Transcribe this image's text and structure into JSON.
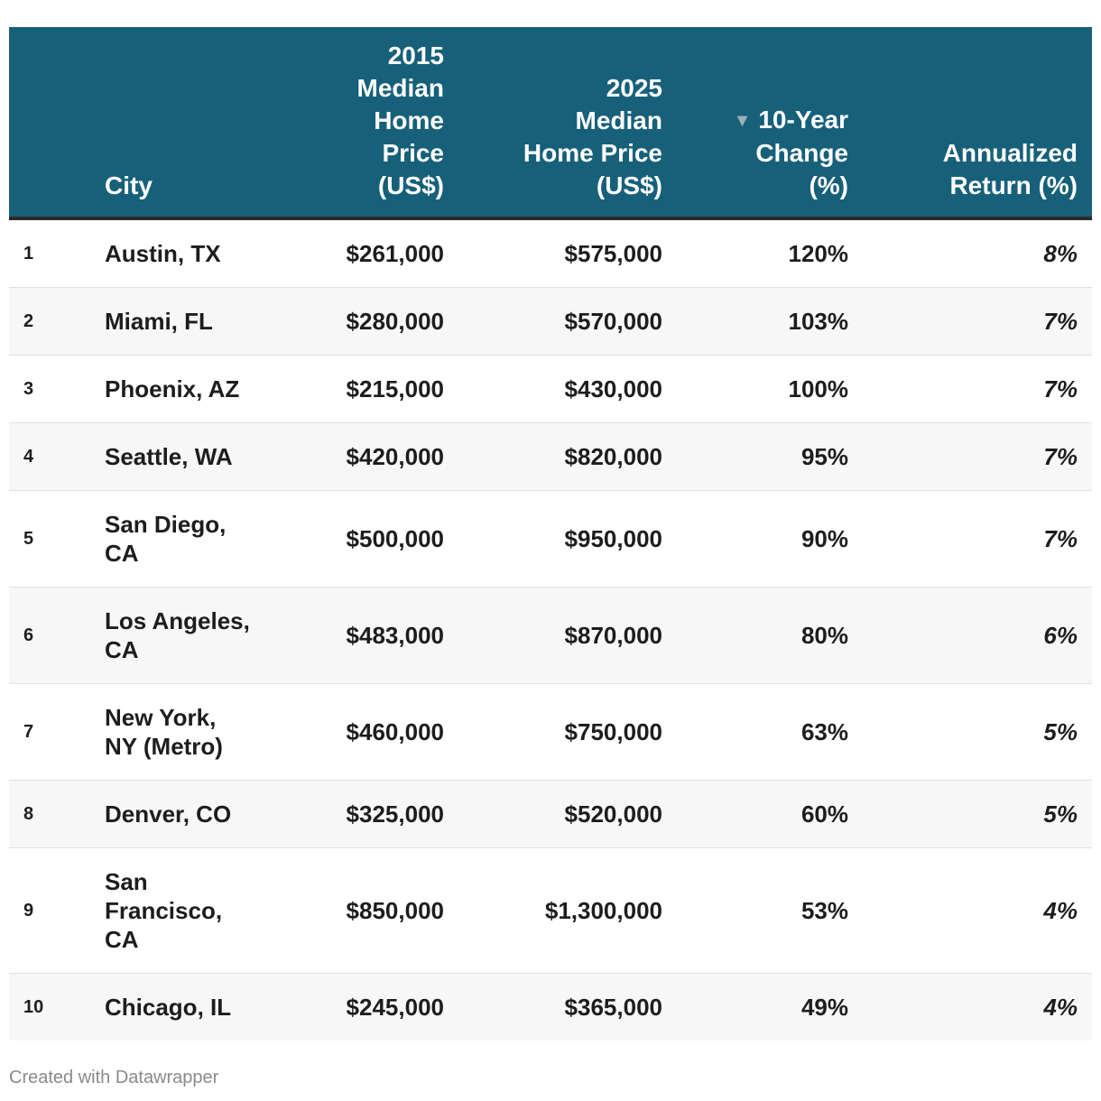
{
  "chart_data": {
    "type": "table",
    "columns": [
      {
        "key": "rank",
        "label_lines": [
          ""
        ]
      },
      {
        "key": "city",
        "label_lines": [
          "City"
        ]
      },
      {
        "key": "price_2015",
        "label_lines": [
          "2015",
          "Median",
          "Home",
          "Price",
          "(US$)"
        ]
      },
      {
        "key": "price_2025",
        "label_lines": [
          "2025",
          "Median",
          "Home Price",
          "(US$)"
        ]
      },
      {
        "key": "change_10yr",
        "label_lines": [
          "10-Year",
          "Change",
          "(%)"
        ],
        "sorted": "descending"
      },
      {
        "key": "annualized",
        "label_lines": [
          "Annualized",
          "Return (%)"
        ]
      }
    ],
    "rows": [
      {
        "rank": "1",
        "city_lines": [
          "Austin, TX"
        ],
        "price_2015": "$261,000",
        "price_2025": "$575,000",
        "change_10yr": "120%",
        "annualized": "8%"
      },
      {
        "rank": "2",
        "city_lines": [
          "Miami, FL"
        ],
        "price_2015": "$280,000",
        "price_2025": "$570,000",
        "change_10yr": "103%",
        "annualized": "7%"
      },
      {
        "rank": "3",
        "city_lines": [
          "Phoenix, AZ"
        ],
        "price_2015": "$215,000",
        "price_2025": "$430,000",
        "change_10yr": "100%",
        "annualized": "7%"
      },
      {
        "rank": "4",
        "city_lines": [
          "Seattle, WA"
        ],
        "price_2015": "$420,000",
        "price_2025": "$820,000",
        "change_10yr": "95%",
        "annualized": "7%"
      },
      {
        "rank": "5",
        "city_lines": [
          "San Diego,",
          "CA"
        ],
        "price_2015": "$500,000",
        "price_2025": "$950,000",
        "change_10yr": "90%",
        "annualized": "7%"
      },
      {
        "rank": "6",
        "city_lines": [
          "Los Angeles,",
          "CA"
        ],
        "price_2015": "$483,000",
        "price_2025": "$870,000",
        "change_10yr": "80%",
        "annualized": "6%"
      },
      {
        "rank": "7",
        "city_lines": [
          "New York,",
          "NY (Metro)"
        ],
        "price_2015": "$460,000",
        "price_2025": "$750,000",
        "change_10yr": "63%",
        "annualized": "5%"
      },
      {
        "rank": "8",
        "city_lines": [
          "Denver, CO"
        ],
        "price_2015": "$325,000",
        "price_2025": "$520,000",
        "change_10yr": "60%",
        "annualized": "5%"
      },
      {
        "rank": "9",
        "city_lines": [
          "San",
          "Francisco,",
          "CA"
        ],
        "price_2015": "$850,000",
        "price_2025": "$1,300,000",
        "change_10yr": "53%",
        "annualized": "4%"
      },
      {
        "rank": "10",
        "city_lines": [
          "Chicago, IL"
        ],
        "price_2015": "$245,000",
        "price_2025": "$365,000",
        "change_10yr": "49%",
        "annualized": "4%"
      }
    ]
  },
  "sort_indicator": "▼",
  "footer": {
    "credit": "Created with Datawrapper"
  },
  "colors": {
    "header_bg": "#17607a",
    "header_text": "#ffffff",
    "row_alt_bg": "#f7f7f7",
    "footer_text": "#8a8a8a"
  }
}
